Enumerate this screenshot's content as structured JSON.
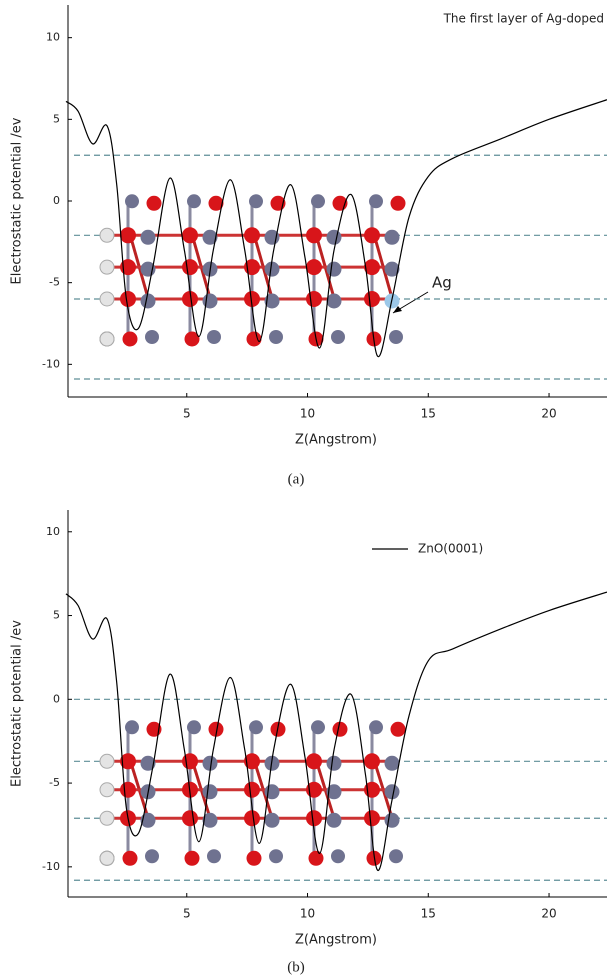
{
  "chart_data": [
    {
      "type": "line",
      "caption": "(a)",
      "x_label": "Z(Angstrom)",
      "y_label": "Electrostatic potential /ev",
      "annotation": "The first layer of Ag-doped",
      "arrow_label": "Ag",
      "xlim": [
        0,
        22.4
      ],
      "ylim": [
        -12,
        12
      ],
      "xticks": [
        5,
        10,
        15,
        20
      ],
      "yticks": [
        -10,
        -5,
        0,
        5,
        10
      ],
      "hlines": [
        2.8,
        -2.1,
        -6.0,
        -10.9
      ],
      "series": [
        {
          "color": "#000000",
          "x": [
            0,
            0.5,
            1.1,
            1.7,
            2.1,
            2.5,
            3.0,
            3.6,
            4.3,
            4.9,
            5.5,
            6.1,
            6.8,
            7.4,
            8.0,
            8.6,
            9.3,
            9.9,
            10.5,
            11.1,
            11.8,
            12.4,
            12.9,
            13.5,
            14.2,
            15,
            16,
            18,
            20,
            22.4
          ],
          "values": [
            6.1,
            5.5,
            3.5,
            4.6,
            1,
            -6,
            -7.8,
            -4,
            1.4,
            -3,
            -8.3,
            -3,
            1.3,
            -3,
            -8.6,
            -3,
            1.0,
            -3.5,
            -9,
            -3,
            0.4,
            -4,
            -9.5,
            -6,
            -1,
            1.5,
            2.6,
            3.8,
            5,
            6.2
          ]
        }
      ]
    },
    {
      "type": "line",
      "caption": "(b)",
      "x_label": "Z(Angstrom)",
      "y_label": "Electrostatic potential /ev",
      "xlim": [
        0,
        22.4
      ],
      "ylim": [
        -11.8,
        11.3
      ],
      "xticks": [
        5,
        10,
        15,
        20
      ],
      "yticks": [
        -10,
        -5,
        0,
        5,
        10
      ],
      "hlines": [
        0,
        -3.7,
        -7.1,
        -10.8
      ],
      "series": [
        {
          "name": "ZnO(0001)",
          "color": "#000000",
          "x": [
            0,
            0.5,
            1.1,
            1.7,
            2.1,
            2.5,
            3.0,
            3.6,
            4.3,
            4.9,
            5.5,
            6.1,
            6.8,
            7.4,
            8.0,
            8.6,
            9.3,
            9.9,
            10.5,
            11.1,
            11.8,
            12.4,
            12.9,
            13.5,
            14.2,
            15,
            16,
            18,
            20,
            22.4
          ],
          "values": [
            6.3,
            5.6,
            3.6,
            4.8,
            1,
            -6.5,
            -8,
            -4,
            1.5,
            -3,
            -8.5,
            -3,
            1.3,
            -3,
            -8.6,
            -3,
            0.9,
            -3.5,
            -9.2,
            -3,
            0.3,
            -4.5,
            -10.2,
            -6,
            -1,
            2.3,
            3.0,
            4.2,
            5.3,
            6.4
          ]
        }
      ]
    }
  ]
}
